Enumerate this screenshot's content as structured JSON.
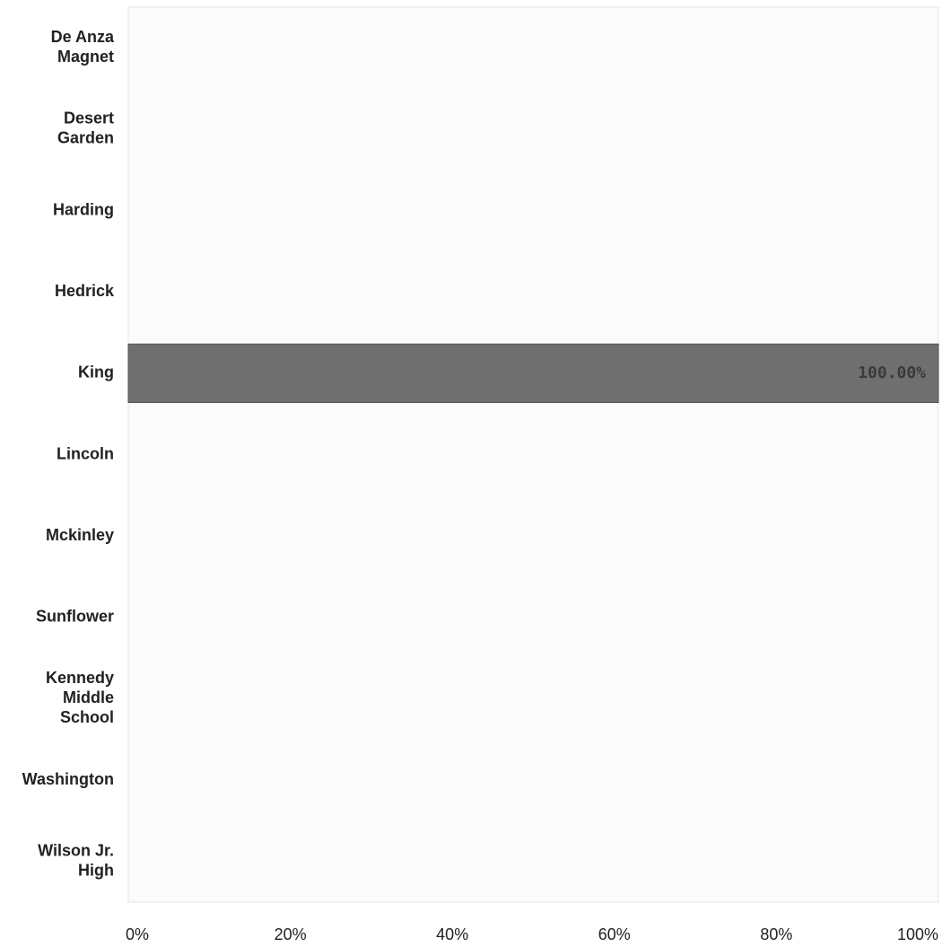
{
  "chart_data": {
    "type": "bar",
    "orientation": "horizontal",
    "categories": [
      "De Anza Magnet",
      "Desert Garden",
      "Harding",
      "Hedrick",
      "King",
      "Lincoln",
      "Mckinley",
      "Sunflower",
      "Kennedy Middle School",
      "Washington",
      "Wilson Jr. High"
    ],
    "category_lines": [
      [
        "De Anza",
        "Magnet"
      ],
      [
        "Desert",
        "Garden"
      ],
      [
        "Harding"
      ],
      [
        "Hedrick"
      ],
      [
        "King"
      ],
      [
        "Lincoln"
      ],
      [
        "Mckinley"
      ],
      [
        "Sunflower"
      ],
      [
        "Kennedy",
        "Middle",
        "School"
      ],
      [
        "Washington"
      ],
      [
        "Wilson Jr.",
        "High"
      ]
    ],
    "values": [
      0,
      0,
      0,
      0,
      100,
      0,
      0,
      0,
      0,
      0,
      0
    ],
    "data_labels": [
      "",
      "",
      "",
      "",
      "100.00%",
      "",
      "",
      "",
      "",
      "",
      ""
    ],
    "xlim": [
      0,
      100
    ],
    "xticks": [
      0,
      20,
      40,
      60,
      80,
      100
    ],
    "xtick_labels": [
      "0%",
      "20%",
      "40%",
      "60%",
      "80%",
      "100%"
    ],
    "title": "",
    "xlabel": "",
    "ylabel": "",
    "grid": false,
    "legend": "none",
    "colors": {
      "bar": "#6f6f6f",
      "bar_edge": "#555555",
      "plot_background": "#fbfbfb",
      "axis_line": "#e6e6e6"
    }
  }
}
